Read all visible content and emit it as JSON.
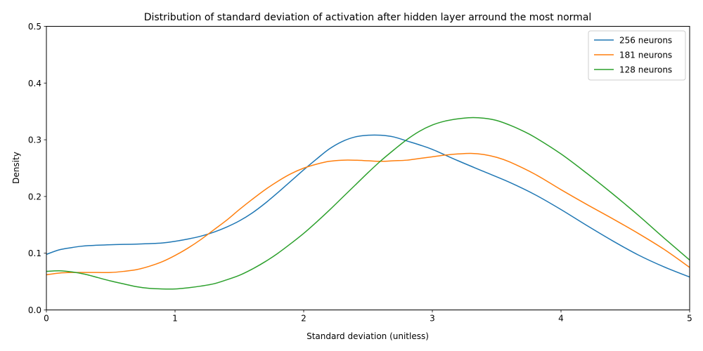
{
  "chart_data": {
    "type": "line",
    "title": "Distribution of standard deviation of activation after hidden layer arround the most normal",
    "xlabel": "Standard deviation (unitless)",
    "ylabel": "Density",
    "xlim": [
      0,
      5
    ],
    "ylim": [
      0,
      0.5
    ],
    "xticks": [
      0,
      1,
      2,
      3,
      4,
      5
    ],
    "xtick_labels": [
      "0",
      "1",
      "2",
      "3",
      "4",
      "5"
    ],
    "yticks": [
      0.0,
      0.1,
      0.2,
      0.3,
      0.4,
      0.5
    ],
    "ytick_labels": [
      "0.0",
      "0.1",
      "0.2",
      "0.3",
      "0.4",
      "0.5"
    ],
    "grid": false,
    "legend_position": "top-right",
    "series": [
      {
        "name": "256 neurons",
        "color": "#1f77b4",
        "x": [
          0,
          0.1,
          0.2,
          0.3,
          0.5,
          0.7,
          0.9,
          1.0,
          1.1,
          1.2,
          1.3,
          1.4,
          1.5,
          1.6,
          1.7,
          1.8,
          1.9,
          2.0,
          2.1,
          2.2,
          2.3,
          2.4,
          2.5,
          2.6,
          2.7,
          2.8,
          2.9,
          3.0,
          3.2,
          3.4,
          3.6,
          3.8,
          4.0,
          4.2,
          4.4,
          4.6,
          4.8,
          5.0
        ],
        "y": [
          0.098,
          0.106,
          0.11,
          0.113,
          0.115,
          0.116,
          0.118,
          0.121,
          0.125,
          0.13,
          0.137,
          0.146,
          0.157,
          0.171,
          0.188,
          0.207,
          0.227,
          0.247,
          0.266,
          0.284,
          0.297,
          0.305,
          0.308,
          0.308,
          0.305,
          0.298,
          0.291,
          0.283,
          0.263,
          0.244,
          0.225,
          0.203,
          0.177,
          0.149,
          0.122,
          0.097,
          0.076,
          0.058
        ]
      },
      {
        "name": "181 neurons",
        "color": "#ff7f0e",
        "x": [
          0,
          0.1,
          0.2,
          0.3,
          0.4,
          0.5,
          0.6,
          0.7,
          0.8,
          0.9,
          1.0,
          1.1,
          1.2,
          1.3,
          1.4,
          1.5,
          1.6,
          1.7,
          1.8,
          1.9,
          2.0,
          2.1,
          2.2,
          2.3,
          2.4,
          2.5,
          2.6,
          2.7,
          2.8,
          2.9,
          3.0,
          3.1,
          3.2,
          3.3,
          3.4,
          3.5,
          3.6,
          3.8,
          4.0,
          4.2,
          4.4,
          4.6,
          4.8,
          5.0
        ],
        "y": [
          0.062,
          0.065,
          0.066,
          0.066,
          0.066,
          0.066,
          0.068,
          0.071,
          0.077,
          0.085,
          0.096,
          0.109,
          0.124,
          0.141,
          0.158,
          0.177,
          0.195,
          0.212,
          0.227,
          0.24,
          0.25,
          0.257,
          0.262,
          0.264,
          0.264,
          0.263,
          0.262,
          0.263,
          0.264,
          0.267,
          0.27,
          0.273,
          0.275,
          0.276,
          0.274,
          0.269,
          0.261,
          0.239,
          0.212,
          0.186,
          0.161,
          0.135,
          0.107,
          0.075
        ]
      },
      {
        "name": "128 neurons",
        "color": "#2ca02c",
        "x": [
          0,
          0.1,
          0.2,
          0.3,
          0.4,
          0.5,
          0.6,
          0.7,
          0.8,
          0.9,
          1.0,
          1.1,
          1.2,
          1.3,
          1.4,
          1.5,
          1.6,
          1.7,
          1.8,
          1.9,
          2.0,
          2.1,
          2.2,
          2.3,
          2.4,
          2.5,
          2.6,
          2.7,
          2.8,
          2.9,
          3.0,
          3.1,
          3.2,
          3.3,
          3.4,
          3.5,
          3.6,
          3.7,
          3.8,
          4.0,
          4.2,
          4.4,
          4.6,
          4.8,
          5.0
        ],
        "y": [
          0.068,
          0.069,
          0.067,
          0.063,
          0.057,
          0.051,
          0.046,
          0.041,
          0.038,
          0.037,
          0.037,
          0.039,
          0.042,
          0.046,
          0.053,
          0.061,
          0.072,
          0.085,
          0.1,
          0.117,
          0.135,
          0.155,
          0.176,
          0.198,
          0.22,
          0.242,
          0.263,
          0.282,
          0.3,
          0.315,
          0.326,
          0.333,
          0.337,
          0.339,
          0.338,
          0.334,
          0.326,
          0.316,
          0.304,
          0.275,
          0.241,
          0.205,
          0.167,
          0.127,
          0.088
        ]
      }
    ]
  }
}
